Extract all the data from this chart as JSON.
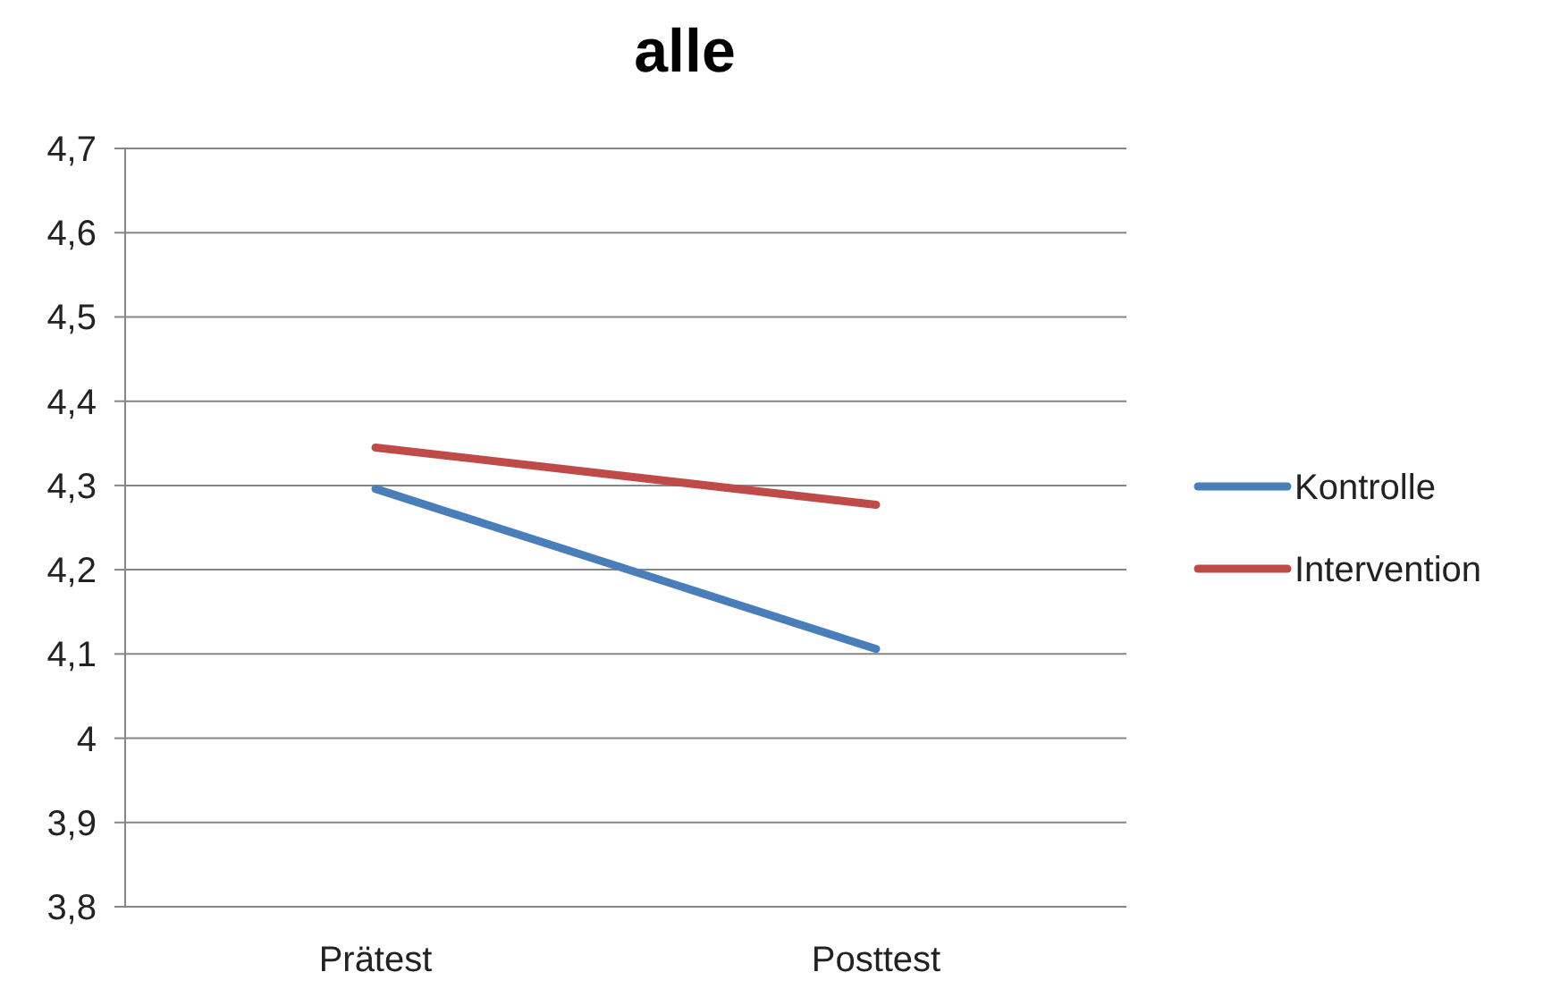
{
  "chart_data": {
    "type": "line",
    "title": "alle",
    "categories": [
      "Prätest",
      "Posttest"
    ],
    "series": [
      {
        "name": "Kontrolle",
        "color": "#4a7ebb",
        "values": [
          4.296,
          4.106
        ]
      },
      {
        "name": "Intervention",
        "color": "#be4b48",
        "values": [
          4.345,
          4.277
        ]
      }
    ],
    "ylim": [
      3.8,
      4.7
    ],
    "yticks": [
      {
        "value": 3.8,
        "label": "3,8"
      },
      {
        "value": 3.9,
        "label": "3,9"
      },
      4,
      {
        "value": 4.1,
        "label": "4,1"
      },
      {
        "value": 4.2,
        "label": "4,2"
      },
      {
        "value": 4.3,
        "label": "4,3"
      },
      {
        "value": 4.4,
        "label": "4,4"
      },
      {
        "value": 4.5,
        "label": "4,5"
      },
      {
        "value": 4.6,
        "label": "4,6"
      },
      {
        "value": 4.7,
        "label": "4,7"
      }
    ],
    "grid": "y",
    "legend": "right",
    "marker": "none",
    "line_style": "solid"
  }
}
